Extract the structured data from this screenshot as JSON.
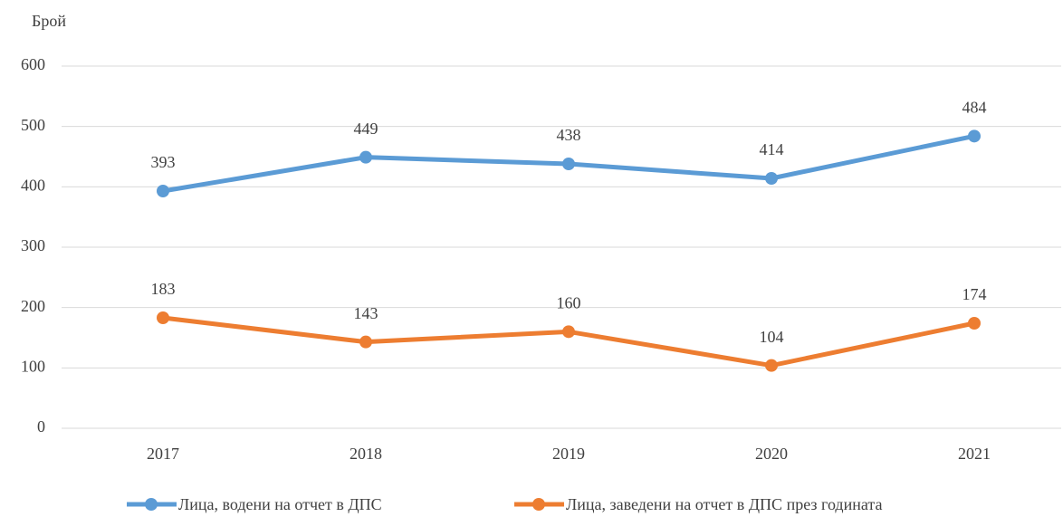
{
  "chart_data": {
    "type": "line",
    "y_label": "Брой",
    "categories": [
      "2017",
      "2018",
      "2019",
      "2020",
      "2021"
    ],
    "series": [
      {
        "name": "Лица, водени на отчет в ДПС",
        "color": "#5b9bd5",
        "values": [
          393,
          449,
          438,
          414,
          484
        ]
      },
      {
        "name": "Лица, заведени на отчет в ДПС през годината",
        "color": "#ed7d31",
        "values": [
          183,
          143,
          160,
          104,
          174
        ]
      }
    ],
    "ylim": [
      0,
      600
    ],
    "yticks": [
      0,
      100,
      200,
      300,
      400,
      500,
      600
    ],
    "grid": true,
    "legend": "bottom",
    "data_labels": true
  }
}
